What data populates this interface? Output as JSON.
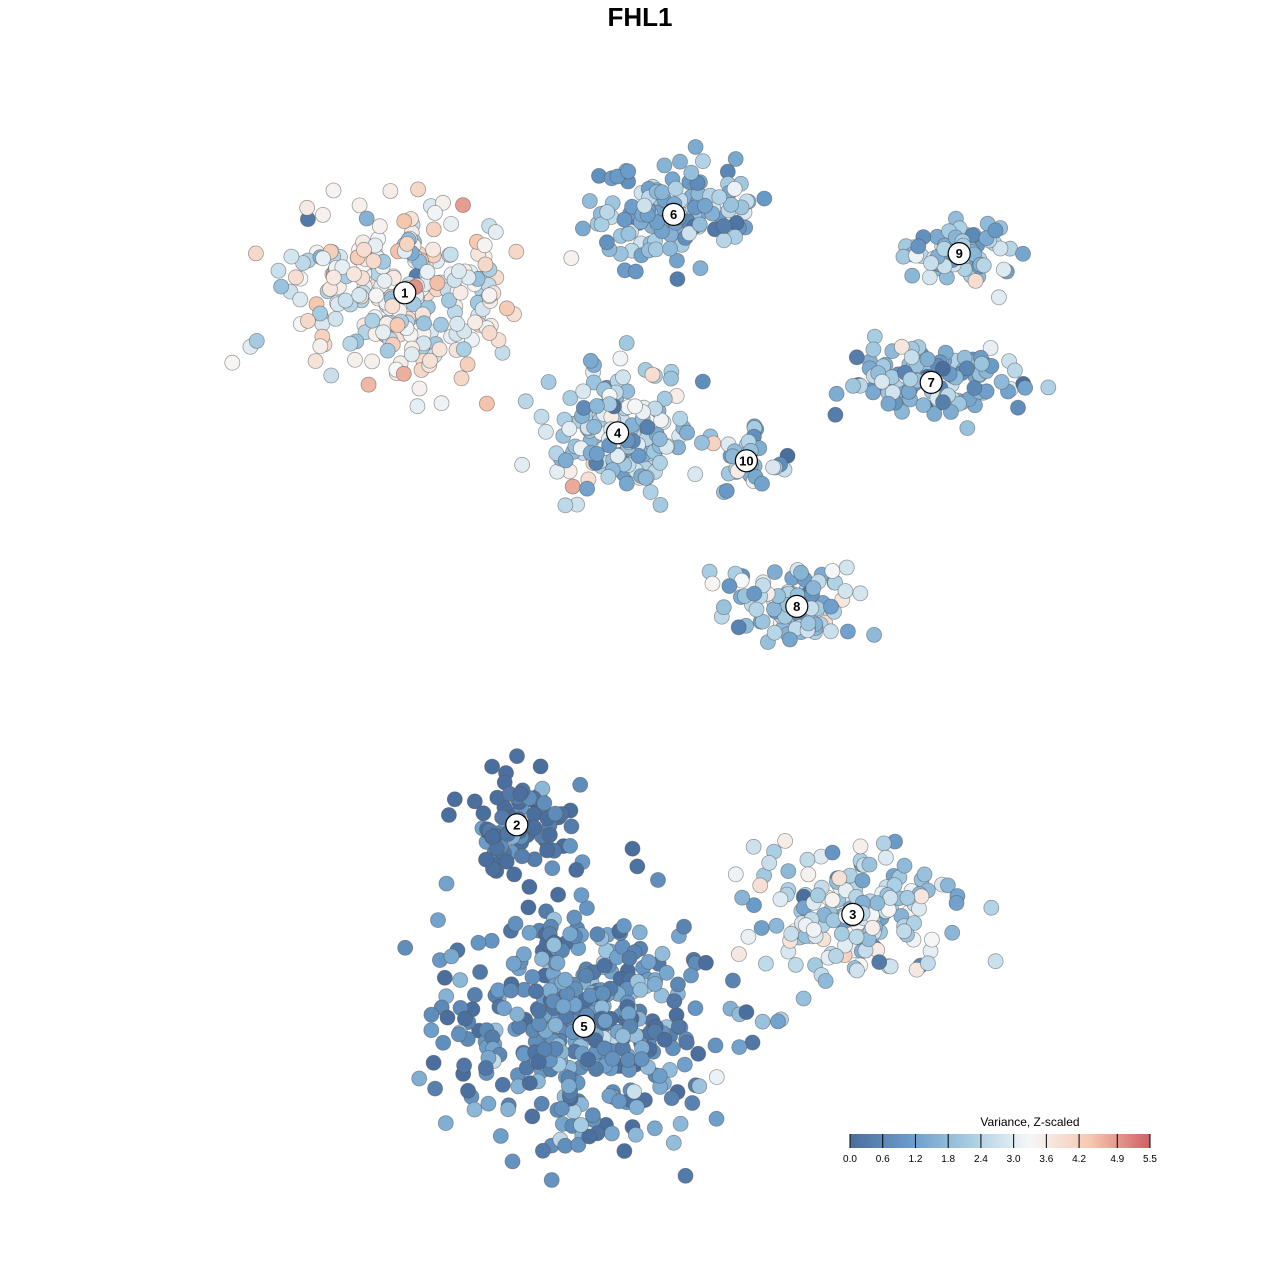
{
  "chart_data": {
    "type": "scatter",
    "title": "FHL1",
    "xlabel": "",
    "ylabel": "",
    "grid": false,
    "legend": {
      "title": "Variance, Z-scaled",
      "placement": "bottom-right",
      "ticks": [
        "0.0",
        "0.6",
        "1.2",
        "1.8",
        "2.4",
        "3.0",
        "3.6",
        "4.2",
        "4.9",
        "5.5"
      ],
      "range": [
        0.0,
        5.5
      ]
    },
    "colorscale": [
      "#4a6e9e",
      "#6a9cc9",
      "#a7cde3",
      "#f6f7f8",
      "#f6c8b0",
      "#cf5f63"
    ],
    "clusters": [
      {
        "label": "1",
        "x": -0.42,
        "y": 0.62,
        "value": 3.2
      },
      {
        "label": "2",
        "x": -0.22,
        "y": -0.33,
        "value": 0.2
      },
      {
        "label": "3",
        "x": 0.38,
        "y": -0.49,
        "value": 2.4
      },
      {
        "label": "4",
        "x": -0.04,
        "y": 0.37,
        "value": 2.3
      },
      {
        "label": "5",
        "x": -0.1,
        "y": -0.69,
        "value": 0.9
      },
      {
        "label": "6",
        "x": 0.06,
        "y": 0.76,
        "value": 1.6
      },
      {
        "label": "7",
        "x": 0.52,
        "y": 0.46,
        "value": 1.7
      },
      {
        "label": "8",
        "x": 0.28,
        "y": 0.06,
        "value": 2.0
      },
      {
        "label": "9",
        "x": 0.57,
        "y": 0.69,
        "value": 2.1
      },
      {
        "label": "10",
        "x": 0.19,
        "y": 0.32,
        "value": 1.6
      }
    ]
  }
}
